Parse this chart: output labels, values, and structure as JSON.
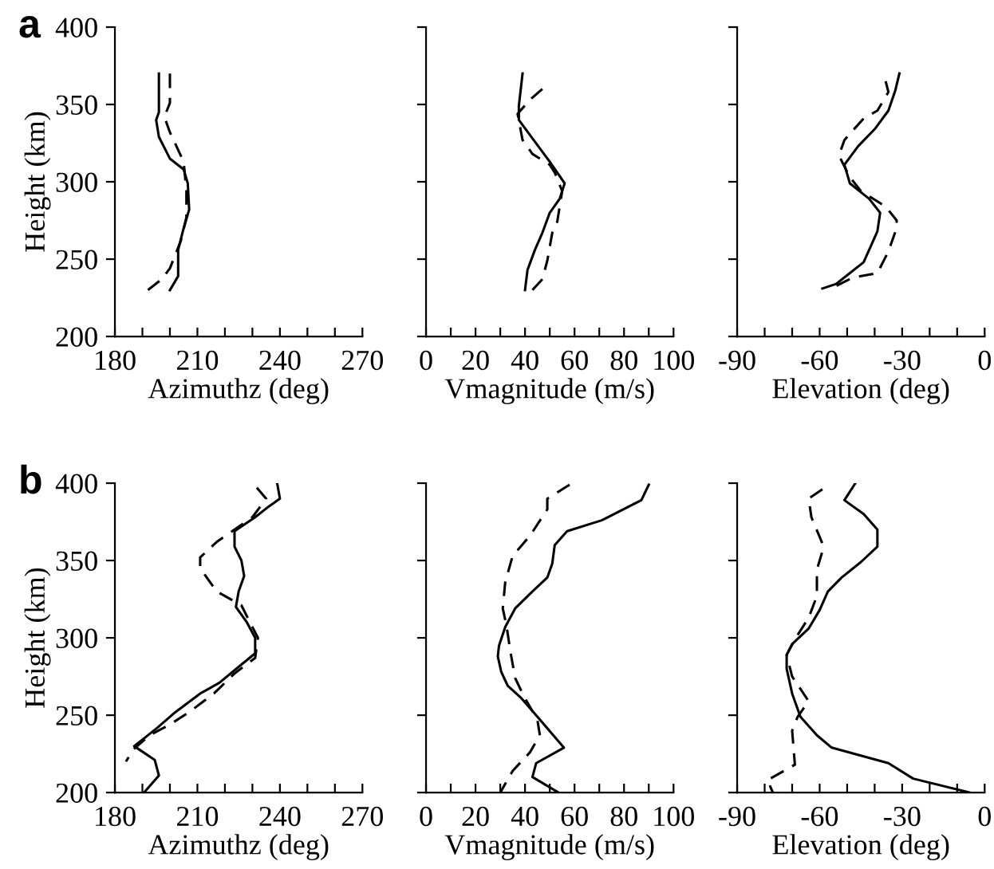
{
  "chart_data": [
    {
      "type": "line",
      "title": "a",
      "xlabel": "Azimuthz (deg)",
      "ylabel": "Height (km)",
      "xlim": [
        180,
        270
      ],
      "xticks": [
        180,
        {
          "value": 190,
          "label": null
        },
        {
          "value": 200,
          "label": null
        },
        210,
        {
          "value": 220,
          "label": null
        },
        {
          "value": 230,
          "label": null
        },
        240,
        {
          "value": 250,
          "label": null
        },
        {
          "value": 260,
          "label": null
        },
        270
      ],
      "ylim": [
        200,
        400
      ],
      "yticks": [
        200,
        250,
        300,
        350,
        400
      ],
      "series": [
        {
          "color": "#000000",
          "line_style": "solid",
          "x": [
            196,
            196,
            195,
            196,
            200,
            205,
            206.5,
            207,
            205,
            203,
            203,
            200
          ],
          "values": [
            370,
            345,
            340,
            329,
            315,
            308,
            299,
            282,
            270,
            256,
            239,
            230
          ]
        },
        {
          "color": "#000000",
          "line_style": "dashed",
          "x": [
            200,
            200,
            198,
            200,
            205,
            206,
            206,
            204,
            202,
            200,
            197,
            192
          ],
          "values": [
            370,
            351,
            342,
            332,
            313,
            294,
            277,
            262,
            253,
            244,
            237,
            230
          ]
        }
      ]
    },
    {
      "type": "line",
      "xlabel": "Vmagnitude (m/s)",
      "tick_labels": "x",
      "xlim": [
        0,
        100
      ],
      "xticks": [
        0,
        {
          "value": 10,
          "label": null
        },
        20,
        {
          "value": 30,
          "label": null
        },
        40,
        {
          "value": 50,
          "label": null
        },
        60,
        {
          "value": 70,
          "label": null
        },
        80,
        {
          "value": 90,
          "label": null
        },
        100
      ],
      "ylim": [
        200,
        400
      ],
      "yticks": [
        {
          "value": 200,
          "label": null
        },
        {
          "value": 250,
          "label": null
        },
        {
          "value": 300,
          "label": null
        },
        {
          "value": 350,
          "label": null
        },
        {
          "value": 400,
          "label": null
        }
      ],
      "series": [
        {
          "color": "#000000",
          "line_style": "solid",
          "x": [
            39,
            37.5,
            37.5,
            43,
            50,
            56,
            54,
            50,
            47,
            44,
            41,
            40
          ],
          "values": [
            370,
            349,
            340,
            328,
            313,
            299,
            289,
            280,
            267,
            256,
            243,
            230
          ]
        },
        {
          "color": "#000000",
          "line_style": "dashed",
          "x": [
            47,
            42,
            37,
            39,
            43,
            50,
            52,
            55,
            53,
            51,
            49,
            47,
            43
          ],
          "values": [
            360,
            353,
            344,
            327,
            318,
            311,
            306,
            294,
            274,
            267,
            249,
            237,
            230
          ]
        }
      ]
    },
    {
      "type": "line",
      "xlabel": "Elevation (deg)",
      "tick_labels": "x",
      "xlim": [
        -90,
        0
      ],
      "xticks": [
        {
          "value": -90,
          "label": "-90"
        },
        {
          "value": -80,
          "label": null
        },
        {
          "value": -70,
          "label": null
        },
        {
          "value": -60,
          "label": "-60"
        },
        {
          "value": -50,
          "label": null
        },
        {
          "value": -40,
          "label": null
        },
        {
          "value": -30,
          "label": "-30"
        },
        {
          "value": -20,
          "label": null
        },
        {
          "value": -10,
          "label": null
        },
        0
      ],
      "ylim": [
        200,
        400
      ],
      "yticks": [
        {
          "value": 200,
          "label": null
        },
        {
          "value": 250,
          "label": null
        },
        {
          "value": 300,
          "label": null
        },
        {
          "value": 350,
          "label": null
        },
        {
          "value": 400,
          "label": null
        }
      ],
      "series": [
        {
          "color": "#000000",
          "line_style": "solid",
          "x": [
            -31,
            -32.5,
            -35,
            -40,
            -46,
            -51,
            -49,
            -42,
            -38,
            -39,
            -41,
            -44,
            -49,
            -54,
            -59
          ],
          "values": [
            370,
            359,
            346,
            334,
            323,
            311,
            299,
            289,
            280,
            268,
            260,
            248,
            241,
            234,
            231
          ]
        },
        {
          "color": "#000000",
          "line_style": "dashed",
          "x": [
            -36,
            -35,
            -39,
            -44,
            -51,
            -53,
            -49,
            -45,
            -36,
            -32,
            -32,
            -35,
            -39,
            -48,
            -56
          ],
          "values": [
            365,
            358,
            346,
            341,
            327,
            317,
            303,
            294,
            284,
            275,
            270,
            255,
            241,
            238,
            231
          ]
        }
      ]
    },
    {
      "type": "line",
      "title": "b",
      "xlabel": "Azimuthz (deg)",
      "ylabel": "Height (km)",
      "xlim": [
        180,
        270
      ],
      "xticks": [
        180,
        {
          "value": 190,
          "label": null
        },
        {
          "value": 200,
          "label": null
        },
        210,
        {
          "value": 220,
          "label": null
        },
        {
          "value": 230,
          "label": null
        },
        240,
        {
          "value": 250,
          "label": null
        },
        {
          "value": 260,
          "label": null
        },
        270
      ],
      "ylim": [
        200,
        400
      ],
      "yticks": [
        200,
        250,
        300,
        350,
        400
      ],
      "series": [
        {
          "color": "#000000",
          "line_style": "solid",
          "x": [
            239,
            240,
            236,
            231,
            223.5,
            223.5,
            226,
            227,
            225,
            224,
            228,
            231,
            231,
            225.5,
            218,
            211,
            202,
            195.5,
            190.6,
            187,
            194.5,
            196,
            190.6
          ],
          "values": [
            400,
            390,
            385,
            378,
            369,
            359,
            350,
            340,
            330,
            320,
            310,
            300,
            290,
            282,
            271,
            264,
            252,
            242,
            235,
            230,
            221,
            211,
            200
          ]
        },
        {
          "color": "#000000",
          "line_style": "dashed",
          "x": [
            231.6,
            235,
            230,
            217,
            211,
            211,
            217,
            226,
            232,
            231,
            223.5,
            216,
            207,
            200,
            192.6,
            186.8,
            184
          ],
          "values": [
            397,
            390,
            378,
            362,
            352,
            345,
            330,
            321,
            300,
            287,
            277,
            264,
            252,
            244,
            237,
            228,
            220
          ]
        }
      ]
    },
    {
      "type": "line",
      "xlabel": "Vmagnitude (m/s)",
      "tick_labels": "x",
      "xlim": [
        0,
        100
      ],
      "xticks": [
        0,
        {
          "value": 10,
          "label": null
        },
        20,
        {
          "value": 30,
          "label": null
        },
        40,
        {
          "value": 50,
          "label": null
        },
        60,
        {
          "value": 70,
          "label": null
        },
        80,
        {
          "value": 90,
          "label": null
        },
        100
      ],
      "ylim": [
        200,
        400
      ],
      "yticks": [
        {
          "value": 200,
          "label": null
        },
        {
          "value": 250,
          "label": null
        },
        {
          "value": 300,
          "label": null
        },
        {
          "value": 350,
          "label": null
        },
        {
          "value": 400,
          "label": null
        }
      ],
      "series": [
        {
          "color": "#000000",
          "line_style": "solid",
          "x": [
            90,
            87,
            71,
            57,
            52,
            51,
            49,
            43,
            36,
            32,
            29.5,
            29,
            30.4,
            33,
            38.5,
            45,
            55.7,
            44.5,
            43,
            53.5
          ],
          "values": [
            399,
            389,
            376,
            369,
            360,
            348,
            339,
            330,
            319,
            307,
            295,
            288,
            278,
            269,
            261,
            249,
            229,
            219,
            210,
            200
          ]
        },
        {
          "color": "#000000",
          "line_style": "dashed",
          "x": [
            58,
            49,
            49,
            42,
            35,
            32,
            31,
            32.5,
            34,
            36,
            39.6,
            45,
            46,
            42,
            35,
            30
          ],
          "values": [
            399,
            390,
            383,
            366,
            353,
            336,
            319,
            308,
            292,
            274,
            262,
            247,
            237,
            226,
            214,
            200
          ]
        }
      ]
    },
    {
      "type": "line",
      "xlabel": "Elevation (deg)",
      "tick_labels": "x",
      "xlim": [
        -90,
        0
      ],
      "xticks": [
        {
          "value": -90,
          "label": "-90"
        },
        {
          "value": -80,
          "label": null
        },
        {
          "value": -70,
          "label": null
        },
        {
          "value": -60,
          "label": "-60"
        },
        {
          "value": -50,
          "label": null
        },
        {
          "value": -40,
          "label": null
        },
        {
          "value": -30,
          "label": "-30"
        },
        {
          "value": -20,
          "label": null
        },
        {
          "value": -10,
          "label": null
        },
        0
      ],
      "ylim": [
        200,
        400
      ],
      "yticks": [
        {
          "value": 200,
          "label": null
        },
        {
          "value": 250,
          "label": null
        },
        {
          "value": 300,
          "label": null
        },
        {
          "value": 350,
          "label": null
        },
        {
          "value": 400,
          "label": null
        }
      ],
      "series": [
        {
          "color": "#000000",
          "line_style": "solid",
          "x": [
            -47,
            -51,
            -44,
            -39,
            -39,
            -45,
            -52,
            -57,
            -60,
            -64,
            -70,
            -72,
            -72,
            -70,
            -67,
            -61,
            -55.6,
            -35,
            -26,
            -5.4
          ],
          "values": [
            400,
            389,
            380,
            370,
            359,
            349,
            339,
            330,
            318,
            306,
            296,
            289,
            280,
            264,
            249,
            237,
            229,
            219,
            209,
            200
          ]
        },
        {
          "color": "#000000",
          "line_style": "dashed",
          "x": [
            -59,
            -64,
            -63,
            -59,
            -59,
            -61,
            -61,
            -64,
            -69,
            -72,
            -70,
            -64,
            -68,
            -70,
            -69,
            -75,
            -79,
            -77
          ],
          "values": [
            396,
            390,
            378,
            361,
            356,
            344,
            327,
            313,
            299,
            289,
            275,
            259,
            249,
            240,
            218,
            212,
            208,
            200
          ]
        }
      ]
    }
  ]
}
